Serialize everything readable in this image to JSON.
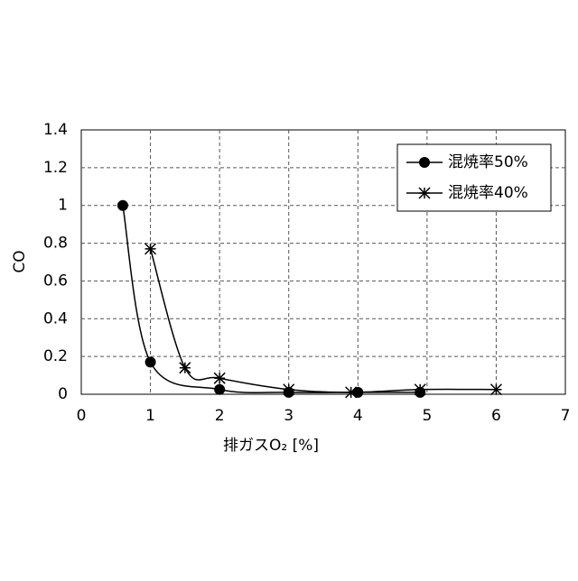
{
  "chart_data": {
    "type": "line",
    "smooth": true,
    "x_label": "排ガスO₂ [%]",
    "y_label": "CO",
    "xlim": [
      0,
      7
    ],
    "xticks": [
      0,
      1,
      2,
      3,
      4,
      5,
      6,
      7
    ],
    "ylim": [
      0,
      1.4
    ],
    "yticks": [
      0,
      0.2,
      0.4,
      0.6,
      0.8,
      1,
      1.2,
      1.4
    ],
    "grid": true,
    "legend": "upper right",
    "series": [
      {
        "name": "混焼率50%",
        "color": "#000000",
        "marker": "circle",
        "x": [
          0.6,
          1.0,
          2.0,
          3.0,
          4.0,
          4.9
        ],
        "values": [
          1.0,
          0.17,
          0.025,
          0.01,
          0.01,
          0.01
        ]
      },
      {
        "name": "混焼率40%",
        "color": "#000000",
        "marker": "star",
        "x": [
          1.0,
          1.5,
          2.0,
          3.0,
          3.9,
          4.9,
          6.0
        ],
        "values": [
          0.77,
          0.14,
          0.085,
          0.025,
          0.01,
          0.025,
          0.025
        ]
      }
    ]
  }
}
